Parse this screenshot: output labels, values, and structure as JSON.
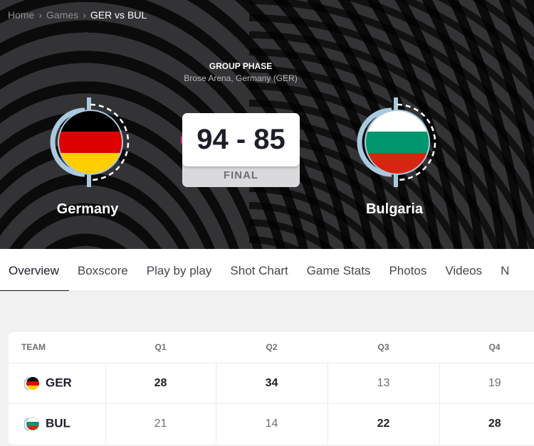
{
  "breadcrumb": {
    "items": [
      "Home",
      "Games"
    ],
    "current": "GER vs BUL"
  },
  "game": {
    "phase": "GROUP PHASE",
    "venue": "Brose Arena, Germany (GER)",
    "score": "94 - 85",
    "status": "FINAL"
  },
  "teams": {
    "home": {
      "name": "Germany",
      "code": "GER",
      "flag_colors": [
        "#000000",
        "#dd0000",
        "#ffce00"
      ]
    },
    "away": {
      "name": "Bulgaria",
      "code": "BUL",
      "flag_colors": [
        "#ffffff",
        "#00966e",
        "#d62612"
      ]
    }
  },
  "tabs": [
    "Overview",
    "Boxscore",
    "Play by play",
    "Shot Chart",
    "Game Stats",
    "Photos",
    "Videos",
    "N"
  ],
  "active_tab": "Overview",
  "table": {
    "headers": [
      "TEAM",
      "Q1",
      "Q2",
      "Q3",
      "Q4"
    ],
    "rows": [
      {
        "team": "GER",
        "scores": [
          "28",
          "34",
          "13",
          "19"
        ],
        "bold": [
          true,
          true,
          false,
          false
        ]
      },
      {
        "team": "BUL",
        "scores": [
          "21",
          "14",
          "22",
          "28"
        ],
        "bold": [
          false,
          false,
          true,
          true
        ]
      }
    ]
  }
}
